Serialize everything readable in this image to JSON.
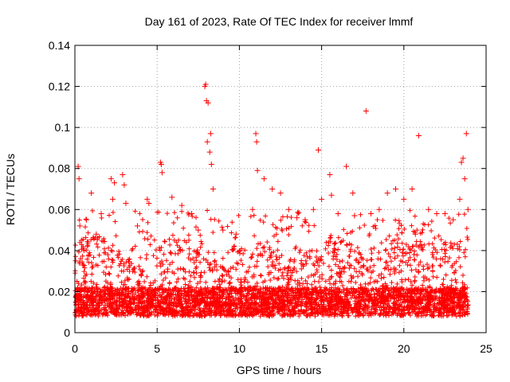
{
  "chart_data": {
    "type": "scatter",
    "title": "Day 161 of 2023, Rate Of TEC Index for receiver lmmf",
    "xlabel": "GPS time / hours",
    "ylabel": "ROTI / TECUs",
    "xlim": [
      0,
      25
    ],
    "ylim": [
      0,
      0.14
    ],
    "xticks": [
      0,
      5,
      10,
      15,
      20,
      25
    ],
    "xtick_labels": [
      "0",
      "5",
      "10",
      "15",
      "20",
      "25"
    ],
    "yticks": [
      0,
      0.02,
      0.04,
      0.06,
      0.08,
      0.1,
      0.12,
      0.14
    ],
    "ytick_labels": [
      "0",
      "0.02",
      "0.04",
      "0.06",
      "0.08",
      "0.1",
      "0.12",
      "0.14"
    ],
    "grid": true,
    "marker": "+",
    "color": "#ff0000",
    "series": [
      {
        "name": "ROTI",
        "x": [
          0.05,
          0.2,
          0.25,
          0.3,
          0.4,
          0.7,
          1.0,
          1.3,
          1.6,
          2.2,
          2.3,
          2.4,
          2.9,
          3.0,
          3.1,
          3.8,
          4.4,
          4.5,
          5.2,
          5.25,
          5.3,
          5.9,
          6.5,
          7.1,
          7.5,
          7.9,
          7.95,
          8.0,
          8.05,
          8.1,
          8.2,
          8.25,
          8.3,
          8.4,
          9.0,
          9.8,
          10.8,
          11.0,
          11.05,
          11.1,
          11.5,
          12.0,
          12.5,
          13.0,
          13.5,
          14.0,
          14.5,
          14.8,
          15.0,
          15.5,
          15.6,
          16.0,
          16.5,
          16.9,
          17.0,
          17.7,
          18.0,
          18.5,
          19.0,
          19.5,
          20.0,
          20.5,
          20.7,
          20.9,
          21.5,
          22.0,
          22.5,
          23.0,
          23.4,
          23.5,
          23.6,
          23.7,
          23.8,
          23.9
        ],
        "y": [
          0.035,
          0.081,
          0.075,
          0.052,
          0.045,
          0.055,
          0.068,
          0.048,
          0.058,
          0.075,
          0.065,
          0.073,
          0.077,
          0.072,
          0.063,
          0.052,
          0.065,
          0.063,
          0.083,
          0.082,
          0.078,
          0.066,
          0.062,
          0.058,
          0.05,
          0.12,
          0.121,
          0.113,
          0.093,
          0.112,
          0.088,
          0.097,
          0.082,
          0.07,
          0.05,
          0.048,
          0.06,
          0.097,
          0.093,
          0.079,
          0.075,
          0.07,
          0.068,
          0.06,
          0.056,
          0.055,
          0.06,
          0.089,
          0.065,
          0.077,
          0.067,
          0.058,
          0.081,
          0.068,
          0.057,
          0.108,
          0.058,
          0.06,
          0.068,
          0.07,
          0.065,
          0.07,
          0.048,
          0.096,
          0.06,
          0.058,
          0.058,
          0.055,
          0.065,
          0.083,
          0.085,
          0.075,
          0.097,
          0.06
        ]
      }
    ]
  }
}
